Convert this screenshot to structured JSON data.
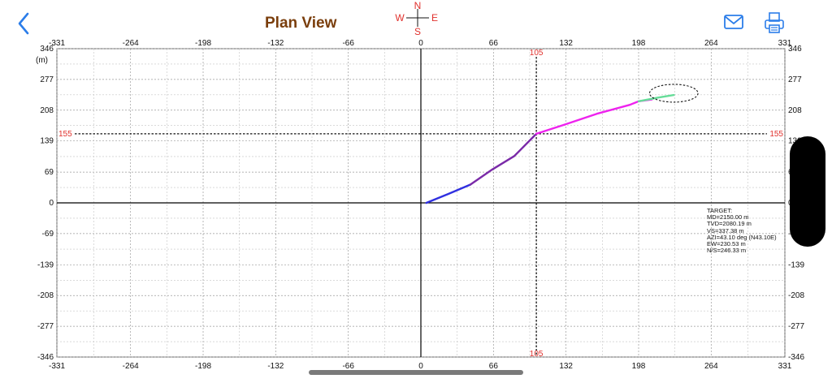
{
  "header": {
    "title": "Plan View",
    "back_icon": "chevron-left-icon",
    "mail_icon": "envelope-icon",
    "print_icon": "printer-icon",
    "accent_color": "#2b7de9"
  },
  "compass": {
    "n": "N",
    "s": "S",
    "e": "E",
    "w": "W",
    "color": "#e0312d"
  },
  "chart_data": {
    "type": "line",
    "unit_label": "(m)",
    "x_ticks": [
      "-331",
      "-264",
      "-198",
      "-132",
      "-66",
      "0",
      "66",
      "132",
      "198",
      "264",
      "331"
    ],
    "x_tick_values": [
      -331,
      -264,
      -198,
      -132,
      -66,
      0,
      66,
      132,
      198,
      264,
      331
    ],
    "y_ticks": [
      "346",
      "277",
      "208",
      "139",
      "69",
      "0",
      "-69",
      "-139",
      "-208",
      "-277",
      "-346"
    ],
    "y_tick_values": [
      346,
      277,
      208,
      139,
      69,
      0,
      -69,
      -139,
      -208,
      -277,
      -346
    ],
    "xlim": [
      -331,
      331
    ],
    "ylim": [
      -346,
      346
    ],
    "grid": true,
    "crosshair": {
      "x": 105,
      "y": 155,
      "x_label": "105",
      "y_label": "155",
      "color": "#e0312d"
    },
    "series": [
      {
        "color": "#3030e0",
        "x": [
          5,
          25,
          45
        ],
        "y": [
          0,
          20,
          41
        ]
      },
      {
        "color": "#7a2aa8",
        "x": [
          45,
          65,
          85,
          105
        ],
        "y": [
          41,
          75,
          105,
          155
        ]
      },
      {
        "color": "#ee22ee",
        "x": [
          105,
          130,
          160,
          190,
          198,
          210
        ],
        "y": [
          155,
          175,
          200,
          220,
          228,
          232
        ]
      },
      {
        "color": "#66dd99",
        "x": [
          198,
          215,
          230
        ],
        "y": [
          228,
          236,
          242
        ]
      }
    ],
    "target_ellipse": {
      "cx": 230,
      "cy": 246,
      "rx": 22,
      "ry": 20
    },
    "target": {
      "lines": [
        "TARGET:",
        "MD=2150.00  m",
        "TVD=2080.19  m",
        "VS=337.38  m",
        "AZI=43.10 deg (N43.10E)",
        "EW=230.53 m",
        "N/S=246.33 m"
      ]
    }
  }
}
